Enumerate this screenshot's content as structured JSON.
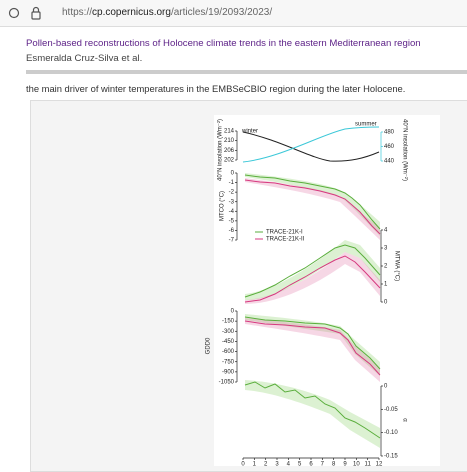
{
  "browser": {
    "url_scheme": "https://",
    "url_domain": "cp.copernicus.org",
    "url_path": "/articles/19/2093/2023/"
  },
  "article": {
    "title": "Pollen-based reconstructions of Holocene climate trends in the eastern Mediterranean region",
    "authors": "Esmeralda Cruz-Silva et al.",
    "text": "the main driver of winter temperatures in the EMBSeCBIO region during the later Holocene."
  },
  "figure": {
    "insolation": {
      "winter_label": "winter",
      "summer_label": "summer",
      "left_label": "40°N insolation (Wm⁻²)",
      "right_label": "40°N insolation (Wm⁻²)",
      "left_ticks": [
        "214",
        "210",
        "206",
        "202"
      ],
      "right_ticks": [
        "480",
        "460",
        "440"
      ]
    },
    "mtco": {
      "label": "MTCO (°C)",
      "ticks": [
        "0",
        "-1",
        "-2",
        "-3",
        "-4",
        "-5",
        "-6",
        "-7"
      ]
    },
    "legend": [
      "TRACE-21K-I",
      "TRACE-21K-II"
    ],
    "mtwa": {
      "label": "MTWA (°C)",
      "ticks": [
        "4",
        "3",
        "2",
        "1",
        "0"
      ]
    },
    "gdd0": {
      "label": "GDD0",
      "ticks": [
        "0",
        "-150",
        "-300",
        "-450",
        "-600",
        "-750",
        "-900",
        "-1050"
      ]
    },
    "alpha": {
      "label": "α",
      "ticks": [
        "0",
        "-0.05",
        "-0.10",
        "-0.15"
      ]
    },
    "xticks": [
      "0",
      "1",
      "2",
      "3",
      "4",
      "5",
      "6",
      "7",
      "8",
      "9",
      "10",
      "11",
      "12"
    ]
  }
}
